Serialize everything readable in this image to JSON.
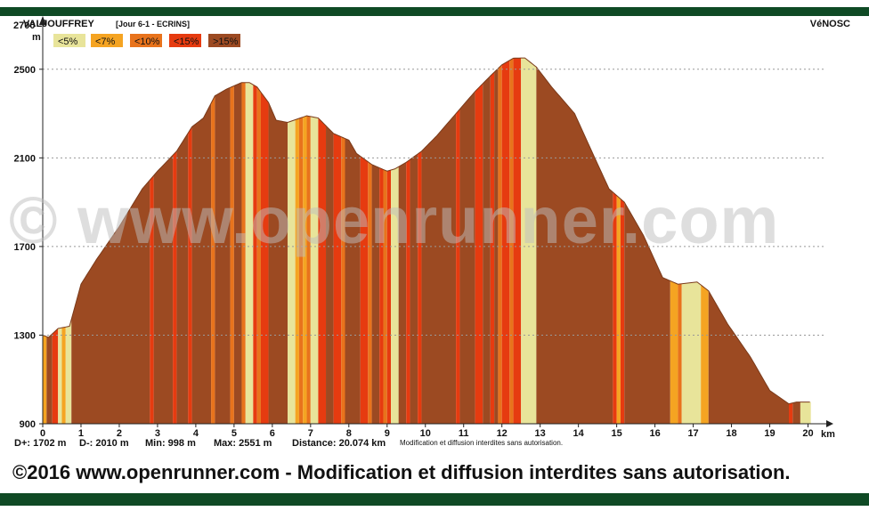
{
  "header": {
    "start_label": "VALJOUFFREY",
    "stage_label": "[Jour 6-1 - ECRINS]",
    "end_label": "VéNOSC",
    "top_tick": "2700"
  },
  "chart_data": {
    "type": "area",
    "xlabel": "km",
    "ylabel": "m",
    "xlim": [
      0,
      20.074
    ],
    "ylim": [
      900,
      2700
    ],
    "x_ticks": [
      "0",
      "1",
      "2",
      "3",
      "4",
      "5",
      "6",
      "7",
      "8",
      "9",
      "10",
      "11",
      "12",
      "13",
      "14",
      "15",
      "16",
      "17",
      "18",
      "19",
      "20"
    ],
    "y_ticks": [
      "900",
      "1300",
      "1700",
      "2100",
      "2500"
    ],
    "grid": true,
    "legend_placement": "top-left",
    "legend": [
      {
        "label": "<5%",
        "color": "#e8e49a"
      },
      {
        "label": "<7%",
        "color": "#f5a422"
      },
      {
        "label": "<10%",
        "color": "#e8731c"
      },
      {
        "label": "<15%",
        "color": "#e63b10"
      },
      {
        "label": ">15%",
        "color": "#9c4a22"
      }
    ],
    "profile": {
      "x": [
        0,
        0.15,
        0.4,
        0.7,
        1.0,
        1.4,
        2.0,
        2.6,
        3.0,
        3.5,
        3.9,
        4.2,
        4.5,
        4.8,
        5.2,
        5.4,
        5.6,
        5.9,
        6.1,
        6.4,
        6.9,
        7.2,
        7.6,
        8.0,
        8.2,
        8.6,
        9.0,
        9.2,
        9.5,
        9.9,
        10.3,
        10.8,
        11.3,
        11.7,
        12.0,
        12.3,
        12.6,
        12.9,
        13.3,
        13.9,
        14.4,
        14.8,
        15.2,
        15.7,
        16.2,
        16.6,
        17.1,
        17.4,
        17.9,
        18.5,
        19.0,
        19.5,
        19.7,
        20.074
      ],
      "y": [
        1300,
        1290,
        1330,
        1340,
        1530,
        1640,
        1790,
        1960,
        2040,
        2130,
        2240,
        2280,
        2380,
        2410,
        2440,
        2440,
        2420,
        2350,
        2270,
        2260,
        2290,
        2280,
        2210,
        2180,
        2120,
        2070,
        2040,
        2050,
        2080,
        2130,
        2200,
        2300,
        2400,
        2470,
        2520,
        2550,
        2551,
        2510,
        2420,
        2300,
        2110,
        1960,
        1900,
        1750,
        1560,
        1530,
        1540,
        1500,
        1350,
        1200,
        1050,
        990,
        998,
        998
      ]
    },
    "slope_segments": [
      {
        "from": 0,
        "to": 0.1,
        "class": "<7%"
      },
      {
        "from": 0.1,
        "to": 0.25,
        "class": ">15%"
      },
      {
        "from": 0.25,
        "to": 0.4,
        "class": "<15%"
      },
      {
        "from": 0.4,
        "to": 0.5,
        "class": "<5%"
      },
      {
        "from": 0.5,
        "to": 0.6,
        "class": "<7%"
      },
      {
        "from": 0.6,
        "to": 0.75,
        "class": "<5%"
      },
      {
        "from": 0.75,
        "to": 2.8,
        "class": ">15%"
      },
      {
        "from": 2.8,
        "to": 2.9,
        "class": "<15%"
      },
      {
        "from": 2.9,
        "to": 3.4,
        "class": ">15%"
      },
      {
        "from": 3.4,
        "to": 3.5,
        "class": "<15%"
      },
      {
        "from": 3.5,
        "to": 3.8,
        "class": ">15%"
      },
      {
        "from": 3.8,
        "to": 3.9,
        "class": "<15%"
      },
      {
        "from": 3.9,
        "to": 4.4,
        "class": ">15%"
      },
      {
        "from": 4.4,
        "to": 4.5,
        "class": "<10%"
      },
      {
        "from": 4.5,
        "to": 4.9,
        "class": ">15%"
      },
      {
        "from": 4.9,
        "to": 5.0,
        "class": "<10%"
      },
      {
        "from": 5.0,
        "to": 5.2,
        "class": ">15%"
      },
      {
        "from": 5.2,
        "to": 5.3,
        "class": "<10%"
      },
      {
        "from": 5.3,
        "to": 5.5,
        "class": "<5%"
      },
      {
        "from": 5.5,
        "to": 5.6,
        "class": "<15%"
      },
      {
        "from": 5.6,
        "to": 5.7,
        "class": "<10%"
      },
      {
        "from": 5.7,
        "to": 5.9,
        "class": "<15%"
      },
      {
        "from": 5.9,
        "to": 6.4,
        "class": ">15%"
      },
      {
        "from": 6.4,
        "to": 6.6,
        "class": "<5%"
      },
      {
        "from": 6.6,
        "to": 6.7,
        "class": "<7%"
      },
      {
        "from": 6.7,
        "to": 6.8,
        "class": "<10%"
      },
      {
        "from": 6.8,
        "to": 6.9,
        "class": "<7%"
      },
      {
        "from": 6.9,
        "to": 7.0,
        "class": "<10%"
      },
      {
        "from": 7.0,
        "to": 7.2,
        "class": "<5%"
      },
      {
        "from": 7.2,
        "to": 7.4,
        "class": "<15%"
      },
      {
        "from": 7.4,
        "to": 7.6,
        "class": ">15%"
      },
      {
        "from": 7.6,
        "to": 7.8,
        "class": "<15%"
      },
      {
        "from": 7.8,
        "to": 7.9,
        "class": "<10%"
      },
      {
        "from": 7.9,
        "to": 8.3,
        "class": ">15%"
      },
      {
        "from": 8.3,
        "to": 8.5,
        "class": "<15%"
      },
      {
        "from": 8.5,
        "to": 8.6,
        "class": "<10%"
      },
      {
        "from": 8.6,
        "to": 8.8,
        "class": ">15%"
      },
      {
        "from": 8.8,
        "to": 8.9,
        "class": "<15%"
      },
      {
        "from": 8.9,
        "to": 9.0,
        "class": "<10%"
      },
      {
        "from": 9.0,
        "to": 9.1,
        "class": "<15%"
      },
      {
        "from": 9.1,
        "to": 9.3,
        "class": "<5%"
      },
      {
        "from": 9.3,
        "to": 9.5,
        "class": ">15%"
      },
      {
        "from": 9.5,
        "to": 9.6,
        "class": "<15%"
      },
      {
        "from": 9.6,
        "to": 9.8,
        "class": ">15%"
      },
      {
        "from": 9.8,
        "to": 9.9,
        "class": "<15%"
      },
      {
        "from": 9.9,
        "to": 10.8,
        "class": ">15%"
      },
      {
        "from": 10.8,
        "to": 10.9,
        "class": "<15%"
      },
      {
        "from": 10.9,
        "to": 11.3,
        "class": ">15%"
      },
      {
        "from": 11.3,
        "to": 11.5,
        "class": "<15%"
      },
      {
        "from": 11.5,
        "to": 11.7,
        "class": ">15%"
      },
      {
        "from": 11.7,
        "to": 11.8,
        "class": "<15%"
      },
      {
        "from": 11.8,
        "to": 11.9,
        "class": ">15%"
      },
      {
        "from": 11.9,
        "to": 12.0,
        "class": "<10%"
      },
      {
        "from": 12.0,
        "to": 12.2,
        "class": "<15%"
      },
      {
        "from": 12.2,
        "to": 12.3,
        "class": "<10%"
      },
      {
        "from": 12.3,
        "to": 12.5,
        "class": "<15%"
      },
      {
        "from": 12.5,
        "to": 12.9,
        "class": "<5%"
      },
      {
        "from": 12.9,
        "to": 14.9,
        "class": ">15%"
      },
      {
        "from": 14.9,
        "to": 15.0,
        "class": "<15%"
      },
      {
        "from": 15.0,
        "to": 15.1,
        "class": "<7%"
      },
      {
        "from": 15.1,
        "to": 15.2,
        "class": "<15%"
      },
      {
        "from": 15.2,
        "to": 16.4,
        "class": ">15%"
      },
      {
        "from": 16.4,
        "to": 16.6,
        "class": "<7%"
      },
      {
        "from": 16.6,
        "to": 16.7,
        "class": "<10%"
      },
      {
        "from": 16.7,
        "to": 17.2,
        "class": "<5%"
      },
      {
        "from": 17.2,
        "to": 17.4,
        "class": "<7%"
      },
      {
        "from": 17.4,
        "to": 19.5,
        "class": ">15%"
      },
      {
        "from": 19.5,
        "to": 19.6,
        "class": "<15%"
      },
      {
        "from": 19.6,
        "to": 19.8,
        "class": ">15%"
      },
      {
        "from": 19.8,
        "to": 20.074,
        "class": "<5%"
      }
    ]
  },
  "stats": {
    "d_plus": "D+: 1702 m",
    "d_minus": "D-: 2010 m",
    "min": "Min: 998 m",
    "max": "Max: 2551 m",
    "distance": "Distance: 20.074 km",
    "notice_small": "Modification et diffusion interdites sans autorisation."
  },
  "watermark": "© www.openrunner.com",
  "copyright": "©2016 www.openrunner.com - Modification et diffusion interdites sans autorisation."
}
